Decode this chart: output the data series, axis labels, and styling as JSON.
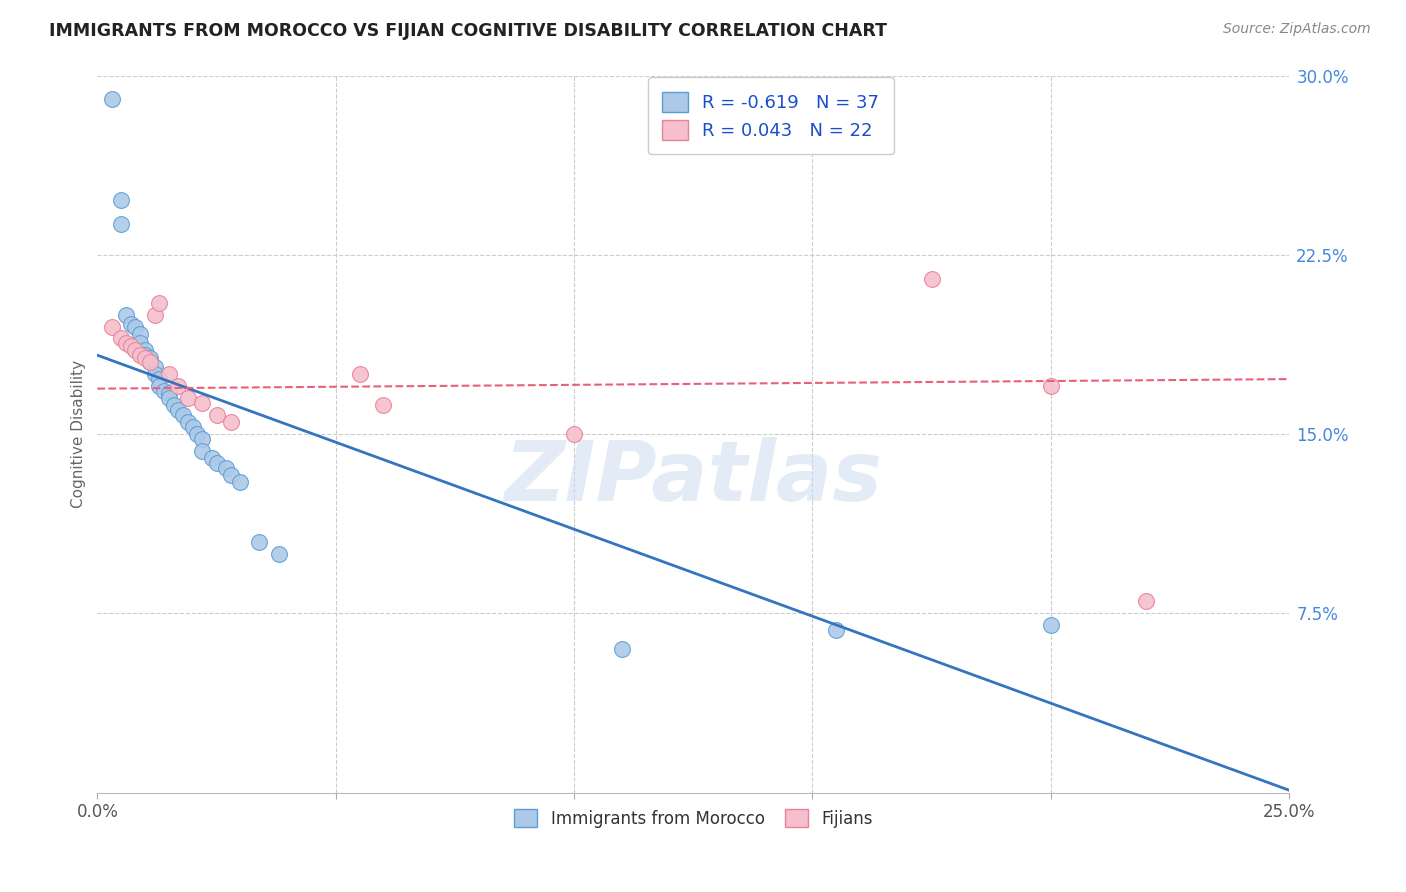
{
  "title": "IMMIGRANTS FROM MOROCCO VS FIJIAN COGNITIVE DISABILITY CORRELATION CHART",
  "source": "Source: ZipAtlas.com",
  "ylabel": "Cognitive Disability",
  "xlim": [
    0,
    0.25
  ],
  "ylim": [
    0,
    0.3
  ],
  "yticks": [
    0.075,
    0.15,
    0.225,
    0.3
  ],
  "ytick_labels": [
    "7.5%",
    "15.0%",
    "22.5%",
    "30.0%"
  ],
  "xtick_labels_shown": [
    "0.0%",
    "25.0%"
  ],
  "xtick_positions_shown": [
    0.0,
    0.25
  ],
  "xtick_minor": [
    0.05,
    0.1,
    0.15,
    0.2
  ],
  "blue_R": "-0.619",
  "blue_N": "37",
  "pink_R": "0.043",
  "pink_N": "22",
  "legend_label1": "Immigrants from Morocco",
  "legend_label2": "Fijians",
  "blue_color": "#adc9e8",
  "pink_color": "#f5bfcd",
  "blue_edge_color": "#5a9ed4",
  "pink_edge_color": "#e8819a",
  "blue_line_color": "#3575c0",
  "pink_line_color": "#e8607a",
  "blue_trend_x": [
    0.0,
    0.25
  ],
  "blue_trend_y": [
    0.183,
    0.001
  ],
  "pink_trend_x": [
    0.0,
    0.25
  ],
  "pink_trend_y": [
    0.169,
    0.173
  ],
  "blue_dots": [
    [
      0.003,
      0.29
    ],
    [
      0.005,
      0.248
    ],
    [
      0.005,
      0.238
    ],
    [
      0.006,
      0.2
    ],
    [
      0.007,
      0.196
    ],
    [
      0.008,
      0.195
    ],
    [
      0.009,
      0.192
    ],
    [
      0.009,
      0.188
    ],
    [
      0.01,
      0.185
    ],
    [
      0.01,
      0.183
    ],
    [
      0.011,
      0.182
    ],
    [
      0.011,
      0.18
    ],
    [
      0.012,
      0.178
    ],
    [
      0.012,
      0.175
    ],
    [
      0.013,
      0.173
    ],
    [
      0.013,
      0.17
    ],
    [
      0.014,
      0.168
    ],
    [
      0.015,
      0.167
    ],
    [
      0.015,
      0.165
    ],
    [
      0.016,
      0.162
    ],
    [
      0.017,
      0.16
    ],
    [
      0.018,
      0.158
    ],
    [
      0.019,
      0.155
    ],
    [
      0.02,
      0.153
    ],
    [
      0.021,
      0.15
    ],
    [
      0.022,
      0.148
    ],
    [
      0.022,
      0.143
    ],
    [
      0.024,
      0.14
    ],
    [
      0.025,
      0.138
    ],
    [
      0.027,
      0.136
    ],
    [
      0.028,
      0.133
    ],
    [
      0.03,
      0.13
    ],
    [
      0.034,
      0.105
    ],
    [
      0.038,
      0.1
    ],
    [
      0.11,
      0.06
    ],
    [
      0.155,
      0.068
    ],
    [
      0.2,
      0.07
    ]
  ],
  "pink_dots": [
    [
      0.003,
      0.195
    ],
    [
      0.005,
      0.19
    ],
    [
      0.006,
      0.188
    ],
    [
      0.007,
      0.187
    ],
    [
      0.008,
      0.185
    ],
    [
      0.009,
      0.183
    ],
    [
      0.01,
      0.182
    ],
    [
      0.011,
      0.18
    ],
    [
      0.012,
      0.2
    ],
    [
      0.013,
      0.205
    ],
    [
      0.015,
      0.175
    ],
    [
      0.017,
      0.17
    ],
    [
      0.019,
      0.165
    ],
    [
      0.022,
      0.163
    ],
    [
      0.025,
      0.158
    ],
    [
      0.028,
      0.155
    ],
    [
      0.055,
      0.175
    ],
    [
      0.06,
      0.162
    ],
    [
      0.1,
      0.15
    ],
    [
      0.175,
      0.215
    ],
    [
      0.2,
      0.17
    ],
    [
      0.22,
      0.08
    ]
  ],
  "watermark": "ZIPatlas",
  "background_color": "#ffffff",
  "grid_color": "#cccccc",
  "legend_text_color": "#1a4fcc",
  "title_color": "#222222",
  "source_color": "#888888",
  "ylabel_color": "#666666",
  "right_tick_color": "#4488dd"
}
